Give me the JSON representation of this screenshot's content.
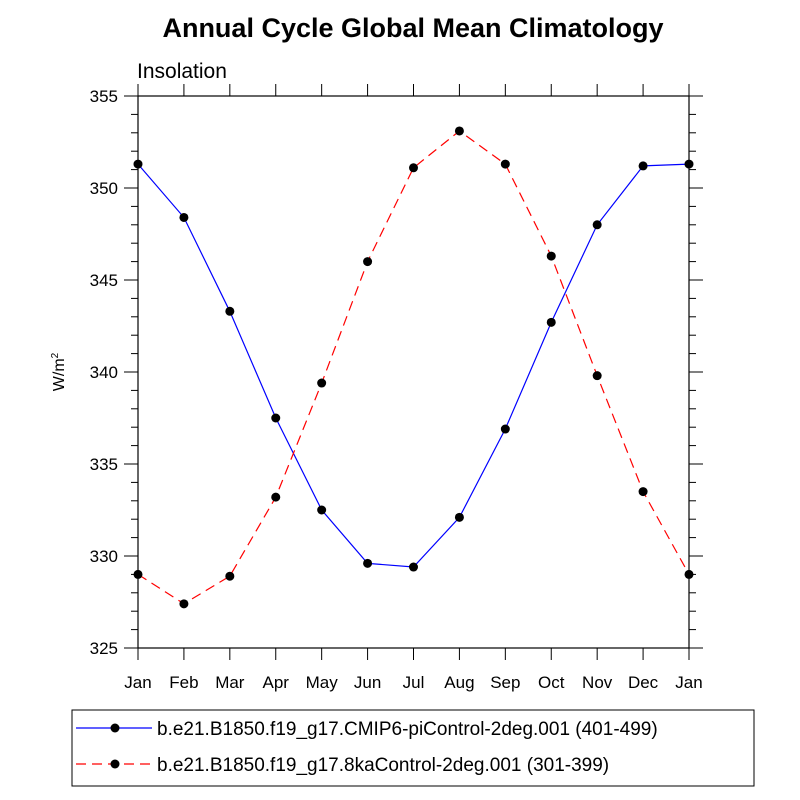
{
  "chart_data": {
    "type": "line",
    "title": "Annual Cycle Global Mean Climatology",
    "subtitle": "Insolation",
    "ylabel_base": "W/m",
    "ylabel_sup": "2",
    "xlabel": "",
    "categories": [
      "Jan",
      "Feb",
      "Mar",
      "Apr",
      "May",
      "Jun",
      "Jul",
      "Aug",
      "Sep",
      "Oct",
      "Nov",
      "Dec",
      "Jan"
    ],
    "ylim": [
      325,
      355
    ],
    "yticks": [
      325,
      330,
      335,
      340,
      345,
      350,
      355
    ],
    "grid": false,
    "legend_position": "bottom",
    "series": [
      {
        "name": "b.e21.B1850.f19_g17.CMIP6-piControl-2deg.001 (401-499)",
        "color": "#0000ff",
        "dash": "solid",
        "marker": "filled-circle",
        "values": [
          351.3,
          348.4,
          343.3,
          337.5,
          332.5,
          329.6,
          329.4,
          332.1,
          336.9,
          342.7,
          348.0,
          351.2,
          351.3
        ]
      },
      {
        "name": "b.e21.B1850.f19_g17.8kaControl-2deg.001 (301-399)",
        "color": "#ff0000",
        "dash": "dashed",
        "marker": "filled-circle",
        "values": [
          329.0,
          327.4,
          328.9,
          333.2,
          339.4,
          346.0,
          351.1,
          353.1,
          351.3,
          346.3,
          339.8,
          333.5,
          329.0
        ]
      }
    ]
  }
}
